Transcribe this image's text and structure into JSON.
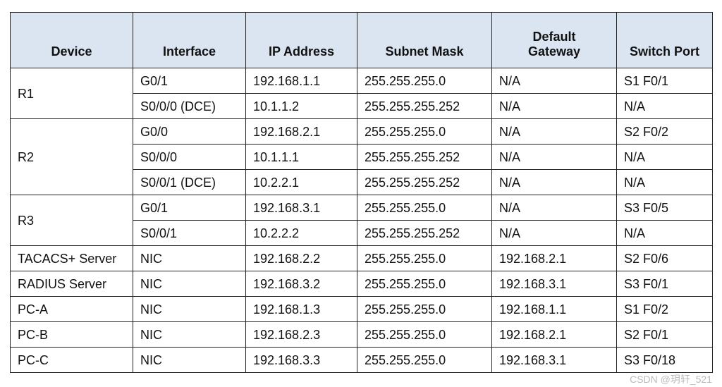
{
  "headers": [
    "Device",
    "Interface",
    "IP Address",
    "Subnet Mask",
    "Default Gateway",
    "Switch Port"
  ],
  "groups": [
    {
      "device": "R1",
      "rows": [
        [
          "G0/1",
          "192.168.1.1",
          "255.255.255.0",
          "N/A",
          "S1 F0/1"
        ],
        [
          "S0/0/0 (DCE)",
          "10.1.1.2",
          "255.255.255.252",
          "N/A",
          "N/A"
        ]
      ]
    },
    {
      "device": "R2",
      "rows": [
        [
          "G0/0",
          "192.168.2.1",
          "255.255.255.0",
          "N/A",
          "S2 F0/2"
        ],
        [
          "S0/0/0",
          "10.1.1.1",
          "255.255.255.252",
          "N/A",
          "N/A"
        ],
        [
          "S0/0/1 (DCE)",
          "10.2.2.1",
          "255.255.255.252",
          "N/A",
          "N/A"
        ]
      ]
    },
    {
      "device": "R3",
      "rows": [
        [
          "G0/1",
          "192.168.3.1",
          "255.255.255.0",
          "N/A",
          "S3 F0/5"
        ],
        [
          "S0/0/1",
          "10.2.2.2",
          "255.255.255.252",
          "N/A",
          "N/A"
        ]
      ]
    },
    {
      "device": "TACACS+ Server",
      "rows": [
        [
          "NIC",
          "192.168.2.2",
          "255.255.255.0",
          "192.168.2.1",
          "S2 F0/6"
        ]
      ]
    },
    {
      "device": "RADIUS Server",
      "rows": [
        [
          "NIC",
          "192.168.3.2",
          "255.255.255.0",
          "192.168.3.1",
          "S3 F0/1"
        ]
      ]
    },
    {
      "device": "PC-A",
      "rows": [
        [
          "NIC",
          "192.168.1.3",
          "255.255.255.0",
          "192.168.1.1",
          "S1 F0/2"
        ]
      ]
    },
    {
      "device": "PC-B",
      "rows": [
        [
          "NIC",
          "192.168.2.3",
          "255.255.255.0",
          "192.168.2.1",
          "S2 F0/1"
        ]
      ]
    },
    {
      "device": "PC-C",
      "rows": [
        [
          "NIC",
          "192.168.3.3",
          "255.255.255.0",
          "192.168.3.1",
          "S3 F0/18"
        ]
      ]
    }
  ],
  "watermark": "CSDN @玥轩_521",
  "colors": {
    "header_bg": "#dbe5f1",
    "border": "#222222"
  }
}
